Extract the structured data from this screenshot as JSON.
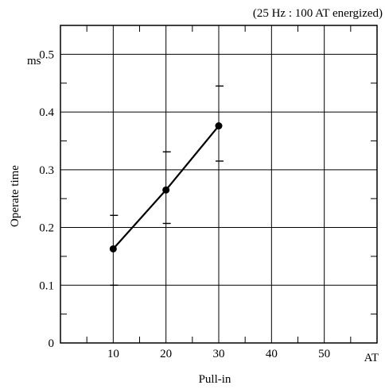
{
  "chart_data": {
    "type": "line",
    "annotation": "(25 Hz : 100 AT energized)",
    "xlabel": "Pull-in",
    "x_unit": "AT",
    "ylabel": "Operate time",
    "y_unit": "ms",
    "xlim": [
      0,
      60
    ],
    "ylim": [
      0,
      0.55
    ],
    "grid": true,
    "x_ticks": [
      "10",
      "20",
      "30",
      "40",
      "50"
    ],
    "y_ticks": [
      "0",
      "0.1",
      "0.2",
      "0.3",
      "0.4",
      "0.5"
    ],
    "series": [
      {
        "x": [
          10,
          20,
          30
        ],
        "y": [
          0.163,
          0.265,
          0.376
        ],
        "y_min": [
          0.1,
          0.207,
          0.315
        ],
        "y_max": [
          0.221,
          0.331,
          0.445
        ]
      }
    ]
  }
}
